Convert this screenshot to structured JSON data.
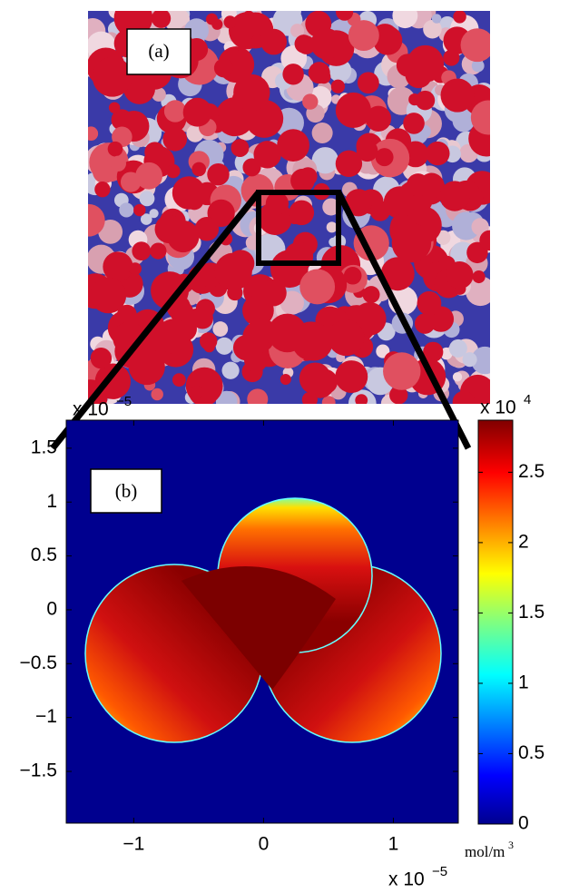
{
  "panel_a": {
    "label": "(a)"
  },
  "chart_data": {
    "type": "heatmap",
    "label": "(b)",
    "xlim": [
      -1.52,
      1.5
    ],
    "xticks": [
      {
        "value": -1,
        "label": "−1"
      },
      0,
      1
    ],
    "ylim": [
      -1.98,
      1.76
    ],
    "yticks": [
      {
        "value": -1.5,
        "label": "−1.5"
      },
      {
        "value": -1,
        "label": "−1"
      },
      {
        "value": -0.5,
        "label": "−0.5"
      },
      0,
      0.5,
      1,
      1.5
    ],
    "x_multiplier": {
      "base": "x 10",
      "exponent": "−5"
    },
    "y_multiplier": {
      "base": "x 10",
      "exponent": "−5"
    },
    "colorbar": {
      "lim": [
        0,
        2.87
      ],
      "ticks": [
        0,
        0.5,
        1,
        1.5,
        2,
        2.5
      ],
      "multiplier": {
        "base": "x 10",
        "exponent": "4"
      },
      "unit": {
        "base": "mol/m",
        "exponent": "3"
      }
    }
  }
}
